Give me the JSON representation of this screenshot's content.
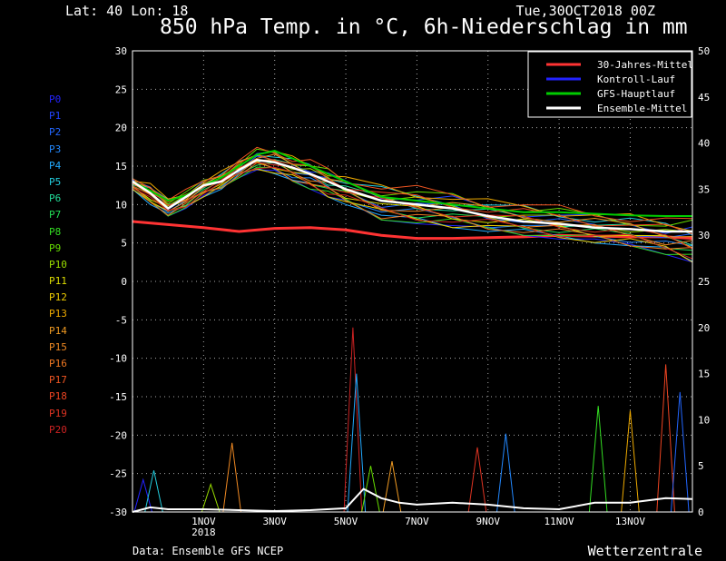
{
  "header": {
    "coords": "Lat: 40 Lon: 18",
    "date": "Tue,30OCT2018 00Z",
    "title": "850 hPa Temp. in °C, 6h-Niederschlag in mm"
  },
  "footer": {
    "source": "Data: Ensemble GFS NCEP",
    "brand": "Wetterzentrale"
  },
  "members": [
    {
      "label": "P0",
      "color": "#2222ff"
    },
    {
      "label": "P1",
      "color": "#2244ff"
    },
    {
      "label": "P2",
      "color": "#2266ff"
    },
    {
      "label": "P3",
      "color": "#2288ff"
    },
    {
      "label": "P4",
      "color": "#22aaff"
    },
    {
      "label": "P5",
      "color": "#22ccdd"
    },
    {
      "label": "P6",
      "color": "#22dd99"
    },
    {
      "label": "P7",
      "color": "#22dd55"
    },
    {
      "label": "P8",
      "color": "#33dd22"
    },
    {
      "label": "P9",
      "color": "#66dd00"
    },
    {
      "label": "P10",
      "color": "#99dd00"
    },
    {
      "label": "P11",
      "color": "#dddd00"
    },
    {
      "label": "P12",
      "color": "#eecc00"
    },
    {
      "label": "P13",
      "color": "#eeaa00"
    },
    {
      "label": "P14",
      "color": "#ee9922"
    },
    {
      "label": "P15",
      "color": "#ee8822"
    },
    {
      "label": "P16",
      "color": "#ee7722"
    },
    {
      "label": "P17",
      "color": "#ee5522"
    },
    {
      "label": "P18",
      "color": "#ee4422"
    },
    {
      "label": "P19",
      "color": "#dd3322"
    },
    {
      "label": "P20",
      "color": "#cc2222"
    }
  ],
  "chart_data": {
    "type": "line",
    "x_range_days": [
      0,
      15.75
    ],
    "x_tick_labels": [
      {
        "day": 2,
        "label": "1NOV",
        "sub": "2018"
      },
      {
        "day": 4,
        "label": "3NOV",
        "sub": ""
      },
      {
        "day": 6,
        "label": "5NOV",
        "sub": ""
      },
      {
        "day": 8,
        "label": "7NOV",
        "sub": ""
      },
      {
        "day": 10,
        "label": "9NOV",
        "sub": ""
      },
      {
        "day": 12,
        "label": "11NOV",
        "sub": ""
      },
      {
        "day": 14,
        "label": "13NOV",
        "sub": ""
      }
    ],
    "y_left": {
      "min": -30,
      "max": 30,
      "step": 5,
      "unit": "°C"
    },
    "y_right": {
      "min": 0,
      "max": 50,
      "step": 5,
      "unit": "mm"
    },
    "grid": true,
    "legend_position": "top-right",
    "legend": [
      {
        "label": "30-Jahres-Mittel",
        "color": "#ff3333"
      },
      {
        "label": "Kontroll-Lauf",
        "color": "#2222ff"
      },
      {
        "label": "GFS-Hauptlauf",
        "color": "#00cc00"
      },
      {
        "label": "Ensemble-Mittel",
        "color": "#ffffff"
      }
    ],
    "climate_mean": {
      "x": [
        0,
        2,
        3,
        4,
        5,
        6,
        7,
        8,
        9,
        10,
        11,
        12,
        13,
        14,
        15,
        15.75
      ],
      "y": [
        7.8,
        7.0,
        6.5,
        6.9,
        7.0,
        6.7,
        6.0,
        5.6,
        5.6,
        5.7,
        5.8,
        6.0,
        5.9,
        5.8,
        5.8,
        5.6
      ]
    },
    "ensemble_mean": {
      "x": [
        0,
        0.5,
        1,
        1.5,
        2,
        2.5,
        3,
        3.5,
        4,
        4.5,
        5,
        5.5,
        6,
        7,
        8,
        9,
        10,
        11,
        12,
        13,
        14,
        15,
        15.75
      ],
      "y": [
        13,
        11.5,
        9.5,
        11,
        12.5,
        13,
        14.5,
        15.8,
        15.5,
        14.8,
        14,
        13,
        12,
        10.5,
        10,
        9.5,
        8.5,
        7.8,
        7.5,
        7,
        6.8,
        6.5,
        6.5
      ]
    },
    "temperature_members_range": {
      "x": [
        0,
        0.5,
        1,
        1.5,
        2,
        2.5,
        3,
        3.5,
        4,
        4.5,
        5,
        5.5,
        6,
        7,
        8,
        9,
        10,
        11,
        12,
        13,
        14,
        15,
        15.75
      ],
      "min": [
        12,
        10,
        8.5,
        9.5,
        11,
        12,
        13.5,
        14.5,
        14,
        13,
        12,
        11,
        10,
        8,
        7.5,
        7,
        6.5,
        6,
        5.5,
        5,
        4.5,
        3.5,
        2.5
      ],
      "max": [
        13.5,
        13,
        11,
        12,
        13.5,
        14.5,
        16,
        17.5,
        17.5,
        16.5,
        16,
        15,
        14,
        13,
        12.5,
        12,
        11,
        10.5,
        10,
        9.5,
        9,
        8.5,
        8.5
      ]
    },
    "gfs_main": {
      "x": [
        0,
        0.5,
        1,
        1.5,
        2,
        2.5,
        3,
        3.5,
        4,
        4.5,
        5,
        5.5,
        6,
        7,
        8,
        9,
        10,
        11,
        12,
        13,
        14,
        15,
        15.75
      ],
      "y": [
        13,
        11.8,
        10.5,
        11.2,
        12.5,
        13.5,
        15,
        16.5,
        17,
        16,
        15,
        14,
        13,
        11,
        10.5,
        10,
        9.5,
        9,
        9,
        8.8,
        8.6,
        8.5,
        8.5
      ]
    },
    "precip_ensemble_mean_mm": {
      "x": [
        0,
        0.5,
        1,
        2,
        3,
        4,
        5,
        6,
        6.5,
        7,
        7.5,
        8,
        9,
        10,
        11,
        12,
        13,
        14,
        15,
        15.75
      ],
      "y": [
        0,
        0.5,
        0.3,
        0.3,
        0.2,
        0.1,
        0.2,
        0.4,
        2.5,
        1.5,
        1.0,
        0.8,
        1.0,
        0.8,
        0.4,
        0.3,
        1.0,
        1.0,
        1.5,
        1.4
      ]
    },
    "precip_peaks_mm": [
      {
        "day": 0.3,
        "value": 3.5
      },
      {
        "day": 0.6,
        "value": 4.5
      },
      {
        "day": 2.2,
        "value": 3.0
      },
      {
        "day": 2.8,
        "value": 7.5
      },
      {
        "day": 6.2,
        "value": 20.0
      },
      {
        "day": 6.3,
        "value": 15.0
      },
      {
        "day": 6.7,
        "value": 5.0
      },
      {
        "day": 7.3,
        "value": 5.5
      },
      {
        "day": 9.7,
        "value": 7.0
      },
      {
        "day": 10.5,
        "value": 8.5
      },
      {
        "day": 13.1,
        "value": 11.5
      },
      {
        "day": 14.0,
        "value": 11.0
      },
      {
        "day": 15.0,
        "value": 16.0
      },
      {
        "day": 15.4,
        "value": 13.0
      }
    ]
  }
}
